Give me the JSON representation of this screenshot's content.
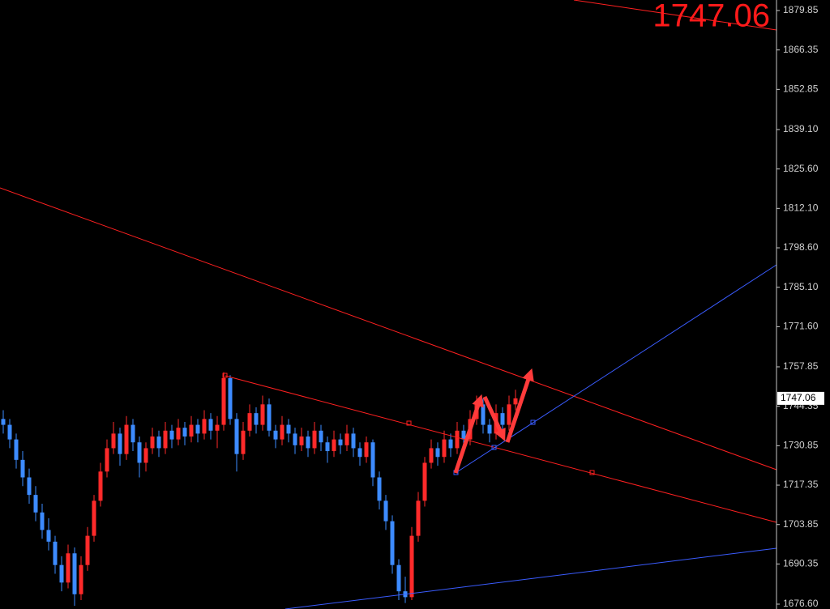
{
  "chart_data": {
    "type": "candlestick",
    "last_price": 1747.06,
    "up_color": "#ff2a2a",
    "down_color": "#3d8bff",
    "ylim": [
      1674.94,
      1883.45
    ],
    "yticks": [
      1879.85,
      1866.35,
      1852.85,
      {
        "value": 1839.1,
        "label": "1839.10"
      },
      {
        "value": 1825.6,
        "label": "1825.60"
      },
      {
        "value": 1812.1,
        "label": "1812.10"
      },
      {
        "value": 1798.6,
        "label": "1798.60"
      },
      {
        "value": 1785.1,
        "label": "1785.10"
      },
      {
        "value": 1771.6,
        "label": "1771.60"
      },
      1757.85,
      1744.35,
      1730.85,
      1717.35,
      1703.85,
      1690.35,
      {
        "value": 1676.6,
        "label": "1676.60"
      }
    ],
    "candles": [
      [
        1740,
        1743,
        1735,
        1738
      ],
      [
        1738,
        1740,
        1730,
        1733
      ],
      [
        1733,
        1735,
        1723,
        1726
      ],
      [
        1726,
        1729,
        1717,
        1720
      ],
      [
        1720,
        1723,
        1711,
        1714
      ],
      [
        1714,
        1717,
        1705,
        1708
      ],
      [
        1708,
        1711,
        1699,
        1702
      ],
      [
        1702,
        1706,
        1695,
        1698
      ],
      [
        1698,
        1700,
        1687,
        1690
      ],
      [
        1690,
        1693,
        1681,
        1684
      ],
      [
        1684,
        1697,
        1682,
        1694
      ],
      [
        1694,
        1696,
        1676,
        1680
      ],
      [
        1680,
        1693,
        1678,
        1690
      ],
      [
        1690,
        1703,
        1688,
        1700
      ],
      [
        1700,
        1714,
        1698,
        1712
      ],
      [
        1712,
        1725,
        1710,
        1722
      ],
      [
        1722,
        1733,
        1720,
        1730
      ],
      [
        1730,
        1739,
        1728,
        1735
      ],
      [
        1735,
        1737,
        1724,
        1728
      ],
      [
        1728,
        1741,
        1726,
        1738
      ],
      [
        1738,
        1740,
        1729,
        1732
      ],
      [
        1732,
        1734,
        1720,
        1725
      ],
      [
        1725,
        1732,
        1722,
        1730
      ],
      [
        1730,
        1737,
        1728,
        1734
      ],
      [
        1734,
        1736,
        1727,
        1730
      ],
      [
        1730,
        1739,
        1728,
        1736
      ],
      [
        1736,
        1738,
        1730,
        1733
      ],
      [
        1733,
        1740,
        1731,
        1737
      ],
      [
        1737,
        1739,
        1731,
        1734
      ],
      [
        1734,
        1741,
        1732,
        1738
      ],
      [
        1738,
        1740,
        1732,
        1735
      ],
      [
        1735,
        1743,
        1733,
        1740
      ],
      [
        1740,
        1742,
        1733,
        1736
      ],
      [
        1736,
        1741,
        1730,
        1738
      ],
      [
        1738,
        1756,
        1736,
        1754
      ],
      [
        1754,
        1755,
        1738,
        1740
      ],
      [
        1740,
        1742,
        1722,
        1728
      ],
      [
        1728,
        1739,
        1726,
        1736
      ],
      [
        1736,
        1745,
        1734,
        1742
      ],
      [
        1742,
        1744,
        1735,
        1738
      ],
      [
        1738,
        1748,
        1736,
        1745
      ],
      [
        1745,
        1747,
        1734,
        1736
      ],
      [
        1736,
        1738,
        1730,
        1733
      ],
      [
        1733,
        1741,
        1731,
        1738
      ],
      [
        1738,
        1740,
        1732,
        1735
      ],
      [
        1735,
        1737,
        1728,
        1731
      ],
      [
        1731,
        1737,
        1729,
        1734
      ],
      [
        1734,
        1736,
        1727,
        1730
      ],
      [
        1730,
        1739,
        1728,
        1736
      ],
      [
        1736,
        1738,
        1729,
        1732
      ],
      [
        1732,
        1734,
        1725,
        1729
      ],
      [
        1729,
        1736,
        1727,
        1733
      ],
      [
        1733,
        1735,
        1728,
        1731
      ],
      [
        1731,
        1738,
        1729,
        1735
      ],
      [
        1735,
        1737,
        1727,
        1730
      ],
      [
        1730,
        1732,
        1724,
        1727
      ],
      [
        1727,
        1734,
        1725,
        1732
      ],
      [
        1732,
        1733,
        1717,
        1720
      ],
      [
        1720,
        1722,
        1709,
        1712
      ],
      [
        1712,
        1714,
        1702,
        1705
      ],
      [
        1705,
        1707,
        1687,
        1690
      ],
      [
        1690,
        1692,
        1678,
        1681
      ],
      [
        1681,
        1686,
        1677,
        1679
      ],
      [
        1679,
        1703,
        1678,
        1700
      ],
      [
        1700,
        1715,
        1698,
        1712
      ],
      [
        1712,
        1727,
        1710,
        1725
      ],
      [
        1725,
        1733,
        1723,
        1730
      ],
      [
        1730,
        1732,
        1724,
        1727
      ],
      [
        1727,
        1736,
        1725,
        1733
      ],
      [
        1733,
        1735,
        1727,
        1730
      ],
      [
        1730,
        1739,
        1728,
        1736
      ],
      [
        1736,
        1738,
        1730,
        1733
      ],
      [
        1733,
        1743,
        1731,
        1740
      ],
      [
        1740,
        1748,
        1738,
        1745
      ],
      [
        1745,
        1747,
        1735,
        1738
      ],
      [
        1738,
        1740,
        1732,
        1735
      ],
      [
        1735,
        1745,
        1733,
        1742
      ],
      [
        1742,
        1744,
        1735,
        1738
      ],
      [
        1738,
        1748,
        1736,
        1745
      ],
      [
        1745,
        1750,
        1743,
        1747.06
      ]
    ]
  }
}
